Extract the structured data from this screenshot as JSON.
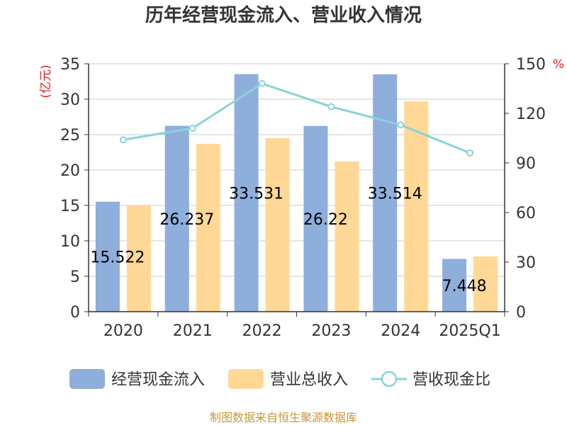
{
  "title": "历年经营现金流入、营业收入情况",
  "source": "制图数据来自恒生聚源数据库",
  "colors": {
    "cash_inflow": "#8eaedb",
    "revenue": "#ffd896",
    "ratio": "#8ad3d6",
    "unit_text": "#e02020",
    "source_text": "#c8963e"
  },
  "chart_data": {
    "type": "bar",
    "title": "历年经营现金流入、营业收入情况",
    "categories": [
      "2020",
      "2021",
      "2022",
      "2023",
      "2024",
      "2025Q1"
    ],
    "left_axis": {
      "unit": "(亿元)",
      "ylim": [
        0,
        35
      ],
      "ticks": [
        "0",
        "5",
        "10",
        "15",
        "20",
        "25",
        "30",
        "35"
      ]
    },
    "right_axis": {
      "unit": "%",
      "ylim": [
        0,
        150
      ],
      "ticks": [
        "0",
        "30",
        "60",
        "90",
        "120",
        "150"
      ]
    },
    "grid": true,
    "legend_position": "bottom",
    "series": [
      {
        "name": "经营现金流入",
        "type": "bar",
        "axis": "left",
        "values": [
          15.522,
          26.237,
          33.531,
          26.22,
          33.514,
          7.448
        ],
        "labels": [
          "15.522",
          "26.237",
          "33.531",
          "26.22",
          "33.514",
          "7.448"
        ]
      },
      {
        "name": "营业总收入",
        "type": "bar",
        "axis": "left",
        "values": [
          15.0,
          23.7,
          24.5,
          21.2,
          29.7,
          7.8
        ]
      },
      {
        "name": "营收现金比",
        "type": "line",
        "axis": "right",
        "values": [
          104,
          111,
          138,
          124,
          113,
          96
        ]
      }
    ]
  }
}
